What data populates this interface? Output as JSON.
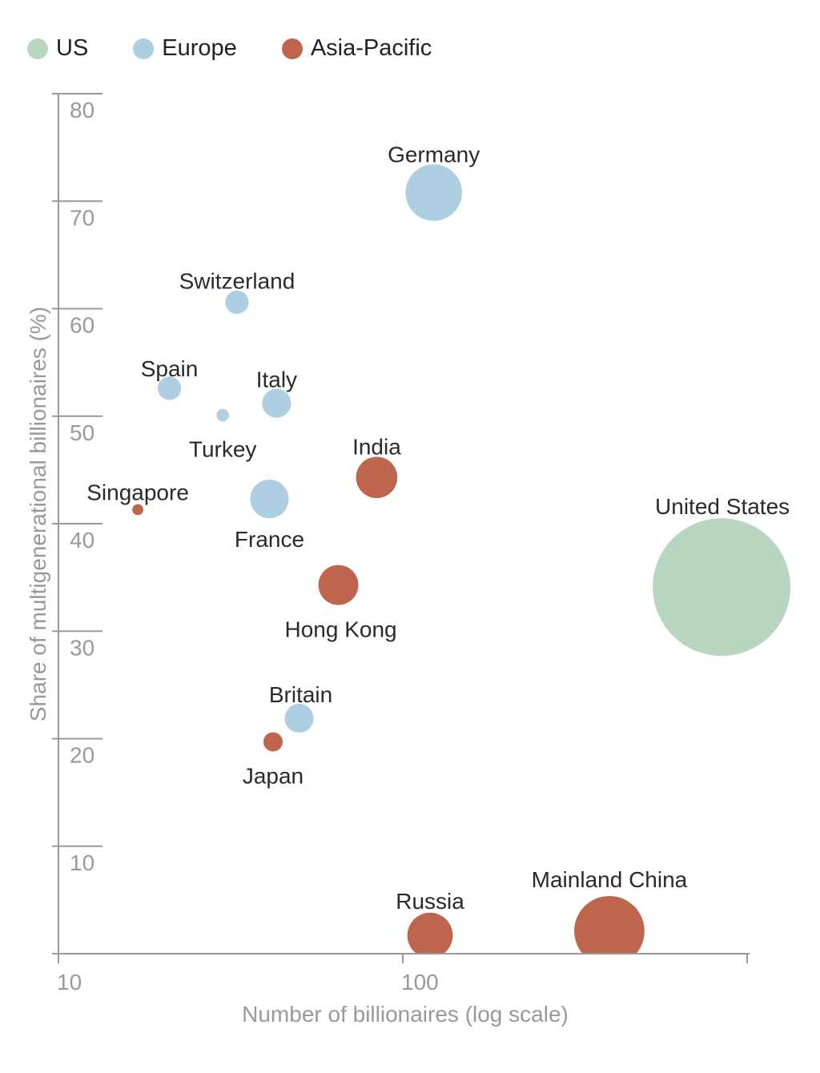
{
  "chart_data": {
    "type": "scatter",
    "variant": "bubble",
    "xlabel": "Number of billionaires (log scale)",
    "ylabel": "Share of multigenerational billionaires (%)",
    "xscale": "log",
    "xlim": [
      10,
      1000
    ],
    "ylim": [
      0,
      80
    ],
    "xticks": [
      "10",
      "100"
    ],
    "yticks": [
      "10",
      "20",
      "30",
      "40",
      "50",
      "60",
      "70",
      "80"
    ],
    "grid": false,
    "legend_position": "top-left",
    "legend": [
      {
        "name": "US",
        "color": "#b9d6c1"
      },
      {
        "name": "Europe",
        "color": "#adcfe1"
      },
      {
        "name": "Asia-Pacific",
        "color": "#c0654d"
      }
    ],
    "points": [
      {
        "label": "Germany",
        "group": "Europe",
        "x": 123,
        "y": 70.8,
        "size": 41
      },
      {
        "label": "Switzerland",
        "group": "Europe",
        "x": 33,
        "y": 60.6,
        "size": 17
      },
      {
        "label": "Spain",
        "group": "Europe",
        "x": 21,
        "y": 52.6,
        "size": 17
      },
      {
        "label": "Italy",
        "group": "Europe",
        "x": 43,
        "y": 51.2,
        "size": 21
      },
      {
        "label": "Turkey",
        "group": "Europe",
        "x": 30,
        "y": 50.1,
        "size": 9
      },
      {
        "label": "India",
        "group": "Asia-Pacific",
        "x": 84,
        "y": 44.3,
        "size": 30
      },
      {
        "label": "Singapore",
        "group": "Asia-Pacific",
        "x": 17,
        "y": 41.3,
        "size": 8
      },
      {
        "label": "France",
        "group": "Europe",
        "x": 41,
        "y": 42.3,
        "size": 28
      },
      {
        "label": "Hong Kong",
        "group": "Asia-Pacific",
        "x": 65,
        "y": 34.3,
        "size": 29
      },
      {
        "label": "United States",
        "group": "US",
        "x": 843,
        "y": 34.1,
        "size": 100
      },
      {
        "label": "Britain",
        "group": "Europe",
        "x": 50,
        "y": 21.9,
        "size": 21
      },
      {
        "label": "Japan",
        "group": "Asia-Pacific",
        "x": 42,
        "y": 19.7,
        "size": 14
      },
      {
        "label": "Russia",
        "group": "Asia-Pacific",
        "x": 120,
        "y": 1.7,
        "size": 33
      },
      {
        "label": "Mainland China",
        "group": "Asia-Pacific",
        "x": 398,
        "y": 2.1,
        "size": 51
      }
    ]
  }
}
